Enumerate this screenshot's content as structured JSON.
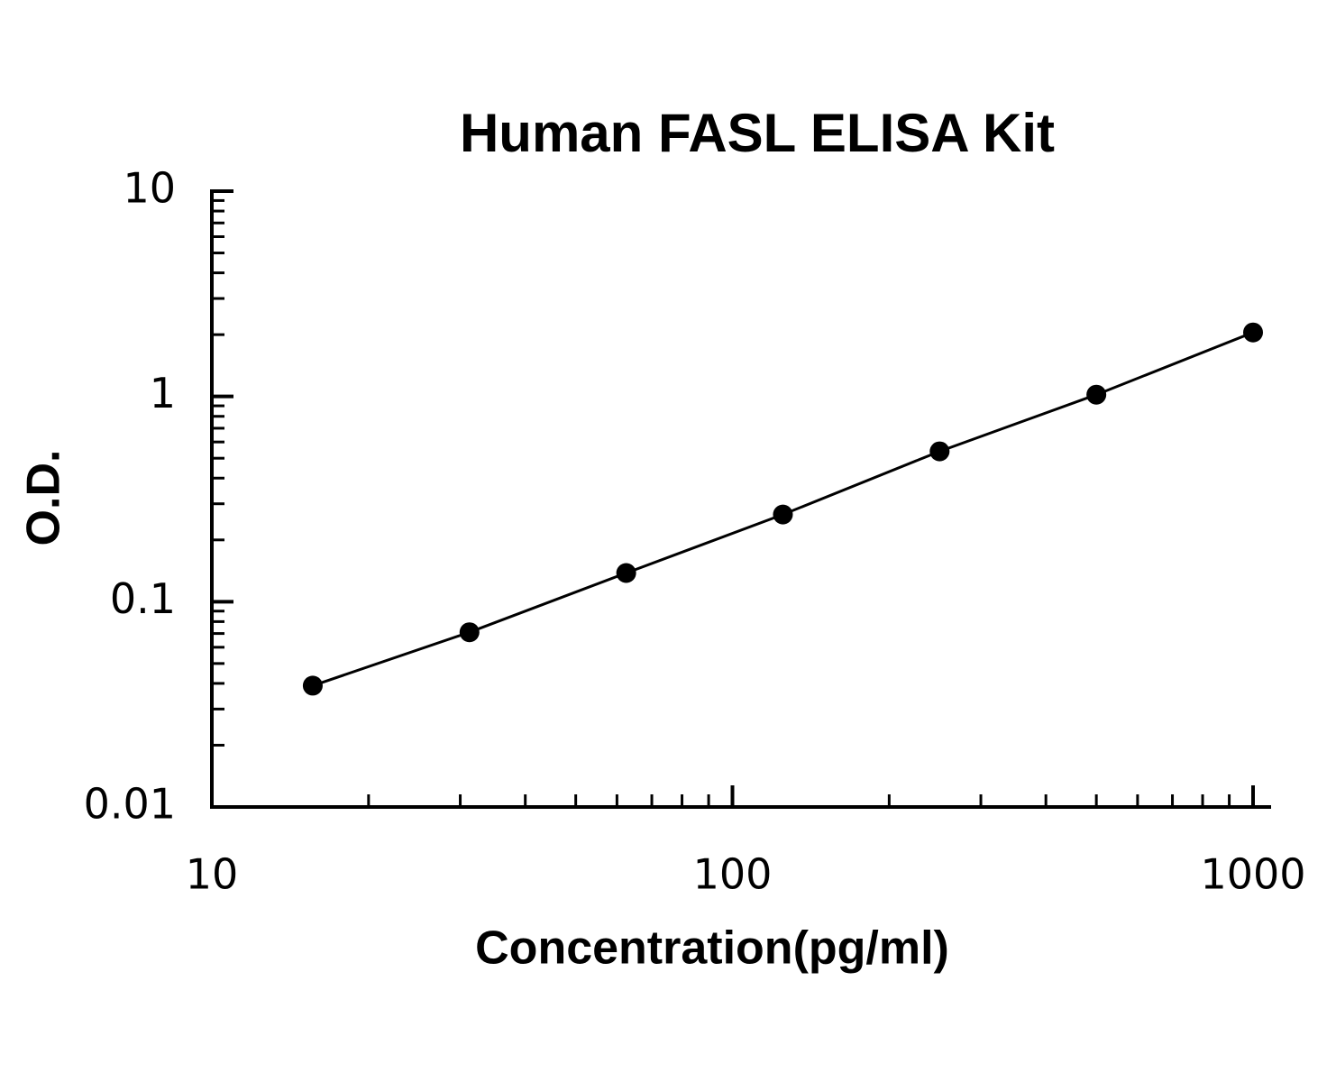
{
  "chart_data": {
    "type": "scatter",
    "title": "Human FASL ELISA Kit",
    "x_label": "Concentration(pg/ml)",
    "y_label": "O.D.",
    "x": [
      15.625,
      31.25,
      62.5,
      125,
      250,
      500,
      1000
    ],
    "series": [
      {
        "color": "#000000",
        "values": [
          0.039,
          0.071,
          0.138,
          0.266,
          0.54,
          1.02,
          2.05
        ]
      }
    ],
    "xscale": "log",
    "yscale": "log",
    "xlim": [
      10,
      1000
    ],
    "ylim": [
      0.01,
      10
    ],
    "xticks": [
      10,
      100,
      1000
    ],
    "yticks": [
      0.01,
      0.1,
      1,
      10
    ],
    "line": true,
    "grid": false
  }
}
